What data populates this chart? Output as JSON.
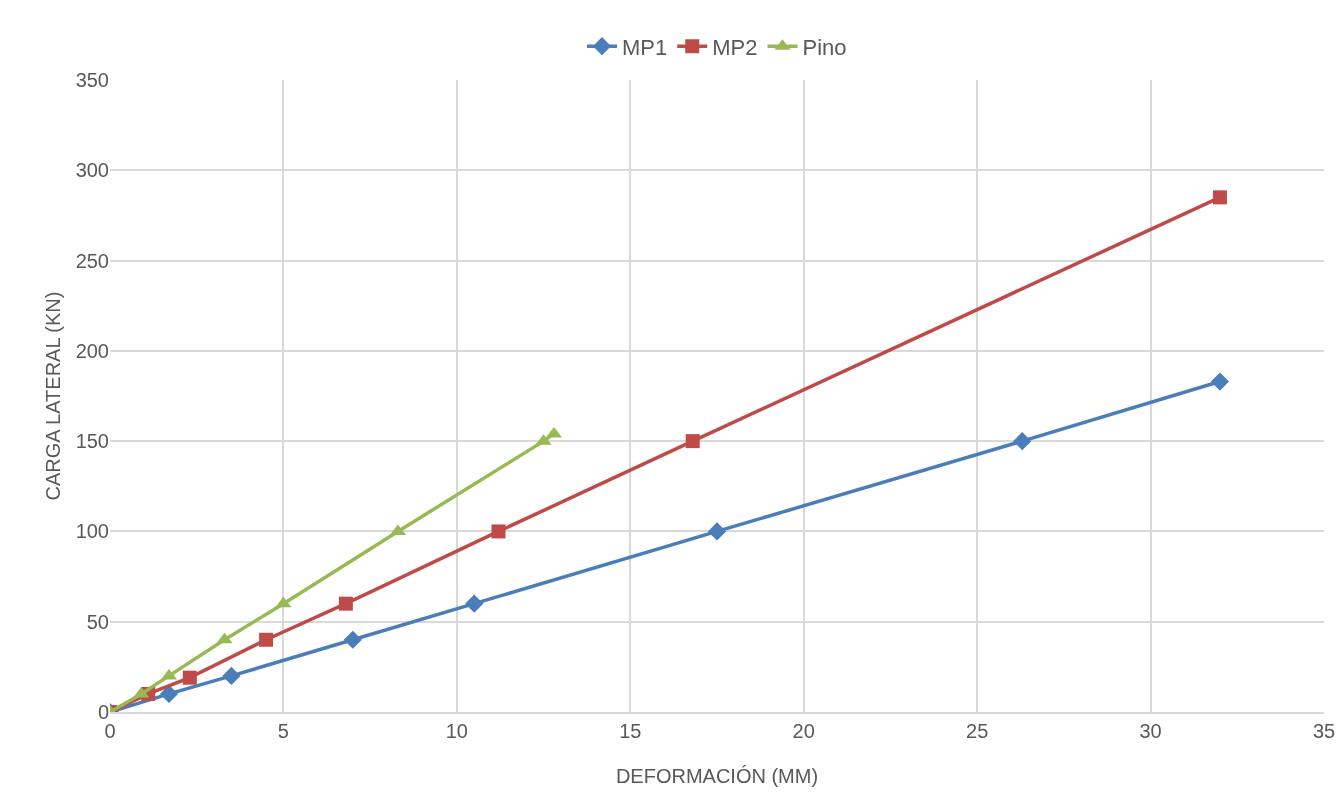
{
  "chart_data": {
    "type": "line",
    "xlabel": "DEFORMACIÓN (MM)",
    "ylabel": "CARGA LATERAL (KN)",
    "xlim": [
      0,
      35
    ],
    "xticks": [
      0,
      5,
      10,
      15,
      20,
      25,
      30,
      35
    ],
    "ylim": [
      0,
      350
    ],
    "yticks": [
      0,
      50,
      100,
      150,
      200,
      250,
      300,
      350
    ],
    "grid": true,
    "legend": "top",
    "line_style": "solid",
    "series": [
      {
        "name": "MP1",
        "color": "#4a7ebb",
        "marker": "diamond",
        "x": [
          0,
          1.7,
          3.5,
          7,
          10.5,
          17.5,
          26.3,
          32
        ],
        "values": [
          0,
          10,
          20,
          40,
          60,
          100,
          150,
          183
        ]
      },
      {
        "name": "MP2",
        "color": "#be4b48",
        "marker": "square",
        "x": [
          0,
          1.1,
          2.3,
          4.5,
          6.8,
          11.2,
          16.8,
          32
        ],
        "values": [
          0,
          10,
          19,
          40,
          60,
          100,
          150,
          285
        ]
      },
      {
        "name": "Pino",
        "color": "#98b954",
        "marker": "triangle",
        "x": [
          0,
          0.9,
          1.7,
          3.3,
          5,
          8.3,
          12.5,
          12.8
        ],
        "values": [
          0,
          10,
          20,
          40,
          60,
          100,
          150,
          154
        ]
      }
    ]
  }
}
